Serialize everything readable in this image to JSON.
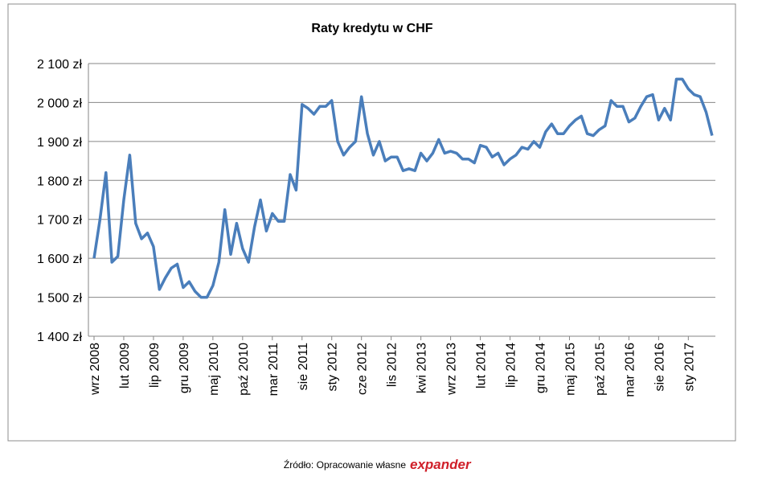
{
  "chart_data": {
    "type": "line",
    "title": "Raty kredytu w CHF",
    "categories": [
      "wrz 2008",
      null,
      null,
      null,
      null,
      "lut 2009",
      null,
      null,
      null,
      null,
      "lip 2009",
      null,
      null,
      null,
      null,
      "gru 2009",
      null,
      null,
      null,
      null,
      "maj 2010",
      null,
      null,
      null,
      null,
      "paź 2010",
      null,
      null,
      null,
      null,
      "mar 2011",
      null,
      null,
      null,
      null,
      "sie 2011",
      null,
      null,
      null,
      null,
      "sty 2012",
      null,
      null,
      null,
      null,
      "cze 2012",
      null,
      null,
      null,
      null,
      "lis 2012",
      null,
      null,
      null,
      null,
      "kwi 2013",
      null,
      null,
      null,
      null,
      "wrz 2013",
      null,
      null,
      null,
      null,
      "lut 2014",
      null,
      null,
      null,
      null,
      "lip 2014",
      null,
      null,
      null,
      null,
      "gru 2014",
      null,
      null,
      null,
      null,
      "maj 2015",
      null,
      null,
      null,
      null,
      "paź 2015",
      null,
      null,
      null,
      null,
      "mar 2016",
      null,
      null,
      null,
      null,
      "sie 2016",
      null,
      null,
      null,
      null,
      "sty 2017",
      null,
      null,
      null,
      null
    ],
    "series": [
      {
        "color": "#4a7ebb",
        "values": [
          1600,
          1700,
          1820,
          1590,
          1605,
          1750,
          1865,
          1690,
          1650,
          1665,
          1630,
          1520,
          1550,
          1575,
          1585,
          1525,
          1540,
          1515,
          1500,
          1500,
          1530,
          1590,
          1725,
          1610,
          1690,
          1625,
          1590,
          1680,
          1750,
          1670,
          1715,
          1695,
          1695,
          1815,
          1775,
          1995,
          1985,
          1970,
          1990,
          1990,
          2005,
          1900,
          1865,
          1885,
          1900,
          2015,
          1920,
          1865,
          1900,
          1850,
          1860,
          1860,
          1825,
          1830,
          1825,
          1870,
          1850,
          1870,
          1905,
          1870,
          1875,
          1870,
          1855,
          1855,
          1845,
          1890,
          1885,
          1860,
          1870,
          1840,
          1855,
          1865,
          1885,
          1880,
          1900,
          1885,
          1925,
          1945,
          1920,
          1920,
          1940,
          1955,
          1965,
          1920,
          1915,
          1930,
          1940,
          2005,
          1990,
          1990,
          1950,
          1960,
          1990,
          2015,
          2020,
          1955,
          1985,
          1955,
          2060,
          2060,
          2035,
          2020,
          2015,
          1975,
          1915
        ]
      }
    ],
    "ylim": [
      1400,
      2100
    ],
    "yticks": [
      {
        "value": 1400,
        "label": "1 400 zł"
      },
      {
        "value": 1500,
        "label": "1 500 zł"
      },
      {
        "value": 1600,
        "label": "1 600 zł"
      },
      {
        "value": 1700,
        "label": "1 700 zł"
      },
      {
        "value": 1800,
        "label": "1 800 zł"
      },
      {
        "value": 1900,
        "label": "1 900 zł"
      },
      {
        "value": 2000,
        "label": "2 000 zł"
      },
      {
        "value": 2100,
        "label": "2 100 zł"
      }
    ],
    "grid": true
  },
  "footer": {
    "source": "Źródło: Opracowanie własne",
    "logo": "expander"
  }
}
